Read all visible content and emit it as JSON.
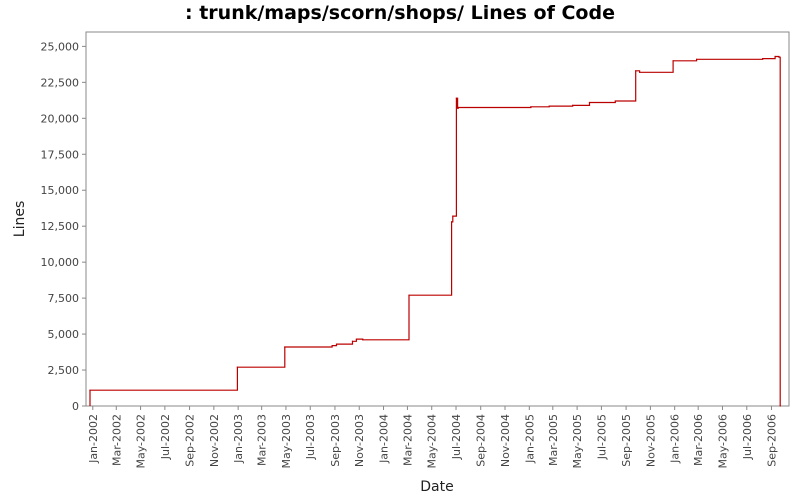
{
  "chart_data": {
    "type": "line",
    "title": ": trunk/maps/scorn/shops/ Lines of Code",
    "xlabel": "Date",
    "ylabel": "Lines",
    "xlim": [
      "2001-12-15",
      "2006-10-15"
    ],
    "ylim": [
      0,
      26000
    ],
    "yticks": [
      0,
      2500,
      5000,
      7500,
      10000,
      12500,
      15000,
      17500,
      20000,
      22500,
      25000
    ],
    "ytick_labels": [
      "0",
      "2,500",
      "5,000",
      "7,500",
      "10,000",
      "12,500",
      "15,000",
      "17,500",
      "20,000",
      "22,500",
      "25,000"
    ],
    "xticks": [
      "2002-01-01",
      "2002-03-01",
      "2002-05-01",
      "2002-07-01",
      "2002-09-01",
      "2002-11-01",
      "2003-01-01",
      "2003-03-01",
      "2003-05-01",
      "2003-07-01",
      "2003-09-01",
      "2003-11-01",
      "2004-01-01",
      "2004-03-01",
      "2004-05-01",
      "2004-07-01",
      "2004-09-01",
      "2004-11-01",
      "2005-01-01",
      "2005-03-01",
      "2005-05-01",
      "2005-07-01",
      "2005-09-01",
      "2005-11-01",
      "2006-01-01",
      "2006-03-01",
      "2006-05-01",
      "2006-07-01",
      "2006-09-01"
    ],
    "xtick_labels": [
      "Jan-2002",
      "Mar-2002",
      "May-2002",
      "Jul-2002",
      "Sep-2002",
      "Nov-2002",
      "Jan-2003",
      "Mar-2003",
      "May-2003",
      "Jul-2003",
      "Sep-2003",
      "Nov-2003",
      "Jan-2004",
      "Mar-2004",
      "May-2004",
      "Jul-2004",
      "Sep-2004",
      "Nov-2004",
      "Jan-2005",
      "Mar-2005",
      "May-2005",
      "Jul-2005",
      "Sep-2005",
      "Nov-2005",
      "Jan-2006",
      "Mar-2006",
      "May-2006",
      "Jul-2006",
      "Sep-2006"
    ],
    "grid": false,
    "line_color": "#bb0000",
    "series": [
      {
        "step": true,
        "x": [
          "2001-12-25",
          "2002-12-30",
          "2003-04-28",
          "2003-08-25",
          "2003-09-05",
          "2003-10-15",
          "2003-10-25",
          "2003-11-10",
          "2004-03-05",
          "2004-06-20",
          "2004-06-23",
          "2004-07-02",
          "2004-07-05",
          "2004-07-07",
          "2005-01-05",
          "2005-02-20",
          "2005-04-20",
          "2005-06-01",
          "2005-08-05",
          "2005-09-25",
          "2005-10-05",
          "2005-12-28",
          "2006-02-25",
          "2006-08-10",
          "2006-09-10",
          "2006-09-20",
          "2006-09-23"
        ],
        "y": [
          1100,
          2700,
          4100,
          4200,
          4300,
          4500,
          4650,
          4600,
          7700,
          12800,
          13200,
          21400,
          20700,
          20750,
          20800,
          20850,
          20900,
          21100,
          21200,
          23300,
          23200,
          24000,
          24100,
          24150,
          24300,
          24250,
          0
        ]
      }
    ]
  }
}
